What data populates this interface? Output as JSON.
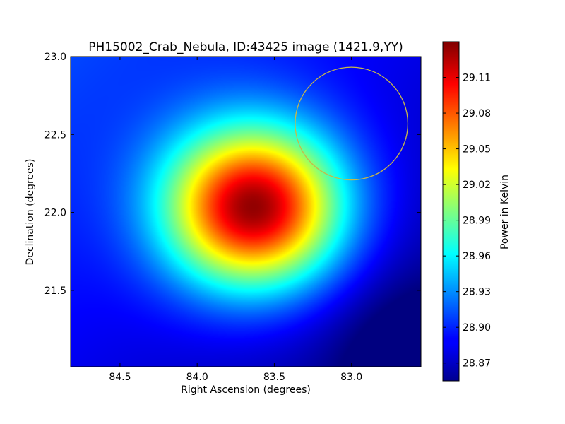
{
  "chart_data": {
    "type": "heatmap",
    "title": "PH15002_Crab_Nebula, ID:43425 image (1421.9,YY)",
    "xlabel": "Right Ascension (degrees)",
    "ylabel": "Declination (degrees)",
    "xlim": [
      84.82,
      82.55
    ],
    "ylim": [
      21.01,
      23.0
    ],
    "x_ticks": [
      84.5,
      84.0,
      83.5,
      83.0
    ],
    "x_tick_labels": [
      "84.5",
      "84.0",
      "83.5",
      "83.0"
    ],
    "y_ticks": [
      21.5,
      22.0,
      22.5,
      23.0
    ],
    "y_tick_labels": [
      "21.5",
      "22.0",
      "22.5",
      "23.0"
    ],
    "colormap": "jet",
    "grid": false,
    "colorbar": {
      "label": "Power in Kelvin",
      "vmin": 28.855,
      "vmax": 29.14,
      "ticks": [
        28.87,
        28.9,
        28.93,
        28.96,
        28.99,
        29.02,
        29.05,
        29.08,
        29.11
      ],
      "tick_labels": [
        "28.87",
        "28.90",
        "28.93",
        "28.96",
        "28.99",
        "29.02",
        "29.05",
        "29.08",
        "29.11"
      ]
    },
    "peak": {
      "ra": 83.63,
      "dec": 22.03,
      "value": 29.135
    },
    "circle": {
      "center_ra": 83.0,
      "center_dec": 22.57,
      "radius_deg": 0.365,
      "color": "#c8b84a"
    }
  }
}
